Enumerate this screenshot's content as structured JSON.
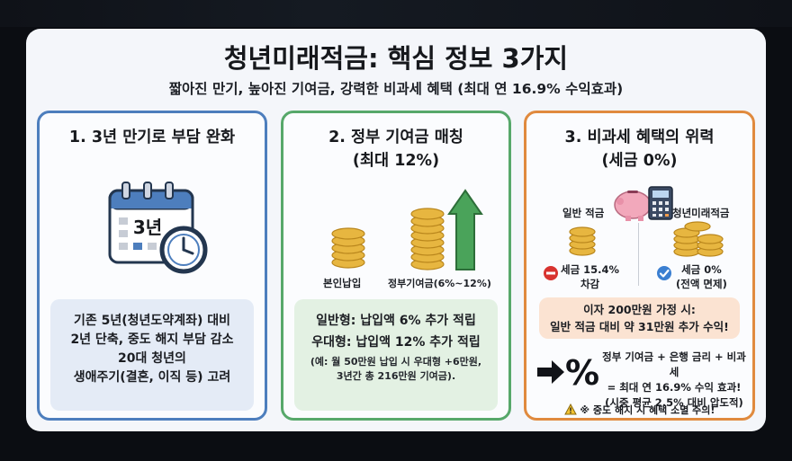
{
  "page": {
    "title": "청년미래적금: 핵심 정보 3가지",
    "subtitle": "짧아진 만기, 높아진 기여금, 강력한 비과세 혜택 (최대 연 16.9% 수익효과)"
  },
  "panel1": {
    "title": "1. 3년 만기로 부담 완화",
    "calendar_text": "3년",
    "body_lines": [
      "기존 5년(청년도약계좌) 대비",
      "2년 단축, 중도 해지 부담 감소",
      "20대 청년의",
      "생애주기(결혼, 이직 등) 고려"
    ],
    "accent_color": "#4d7ebd"
  },
  "panel2": {
    "title_line1": "2. 정부 기여금 매칭",
    "title_line2": "(최대 12%)",
    "label_own": "본인납입",
    "label_gov": "정부기여금(6%~12%)",
    "body_line1": "일반형: 납입액 6% 추가 적립",
    "body_line2": "우대형: 납입액 12% 추가 적립",
    "body_note1": "(예: 월 50만원 납입 시 우대형 +6만원,",
    "body_note2": "3년간 총 216만원 기여금).",
    "accent_color": "#57a86a"
  },
  "panel3": {
    "title_line1": "3. 비과세 혜택의 위력",
    "title_line2": "(세금 0%)",
    "label_general": "일반 적금",
    "label_youth": "청년미래적금",
    "tax_general_line1": "세금 15.4%",
    "tax_general_line2": "차감",
    "tax_youth_line1": "세금 0%",
    "tax_youth_line2": "(전액 면제)",
    "interest_line1": "이자 200만원 가정 시:",
    "interest_line2": "일반 적금 대비 약 31만원 추가 수익!",
    "pct_line1": "정부 기여금 + 은행 금리 + 비과세",
    "pct_line2": "= 최대 연 16.9% 수익 효과!",
    "pct_line3": "(시중 평균 2.5% 대비 압도적)",
    "warning": "※ 중도 해지 시 혜택 소멸 주의!",
    "accent_color": "#e08a3e"
  }
}
